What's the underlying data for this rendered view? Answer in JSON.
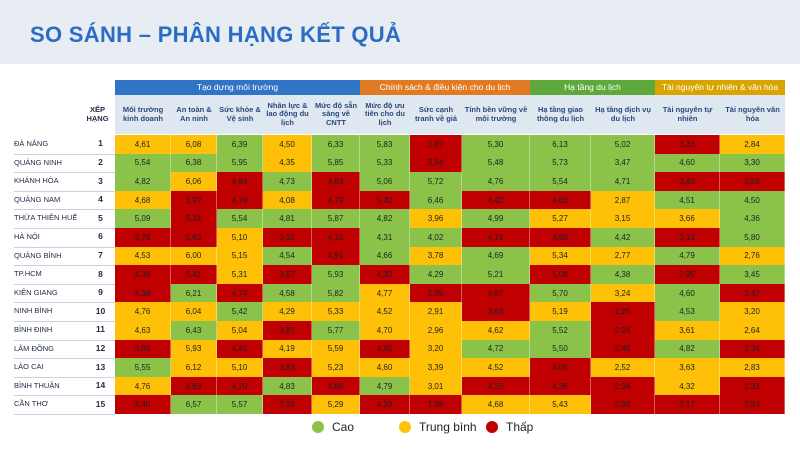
{
  "title": "SO SÁNH – PHÂN HẠNG KẾT QUẢ",
  "colors": {
    "Cao": "#8bc34a",
    "Trung bình": "#ffc107",
    "Thấp": "#c00000"
  },
  "groups": [
    {
      "label": "Tạo dựng môi trường",
      "color": "#2f74c6",
      "span": 5
    },
    {
      "label": "Chính sách & điều kiện cho du lịch",
      "color": "#e07b24",
      "span": 3
    },
    {
      "label": "Hạ tầng du lịch",
      "color": "#5fa83c",
      "span": 2
    },
    {
      "label": "Tài nguyên tự nhiên & văn hóa",
      "color": "#d9a400",
      "span": 2
    }
  ],
  "rank_header": "XẾP HẠNG",
  "columns": [
    "Môi trường kinh doanh",
    "An toàn & An ninh",
    "Sức khỏe & Vệ sinh",
    "Nhân lực & lao động du lịch",
    "Mức độ sẵn sàng về CNTT",
    "Mức độ ưu tiên cho du lịch",
    "Sức cạnh tranh về giá",
    "Tính bền vững về môi trường",
    "Hạ tầng giao thông du lịch",
    "Hạ tầng dịch vụ du lịch",
    "Tài nguyên tự nhiên",
    "Tài nguyên văn hóa"
  ],
  "rows": [
    {
      "name": "ĐÀ NẴNG",
      "rank": "1",
      "cells": [
        [
          "4,61",
          "Y"
        ],
        [
          "6,08",
          "Y"
        ],
        [
          "6,39",
          "G"
        ],
        [
          "4,50",
          "Y"
        ],
        [
          "6,33",
          "G"
        ],
        [
          "5,83",
          "G"
        ],
        [
          "2,87",
          "R"
        ],
        [
          "5,30",
          "G"
        ],
        [
          "6,13",
          "G"
        ],
        [
          "5,02",
          "G"
        ],
        [
          "3,33",
          "R"
        ],
        [
          "2,84",
          "Y"
        ]
      ]
    },
    {
      "name": "QUẢNG NINH",
      "rank": "2",
      "cells": [
        [
          "5,54",
          "G"
        ],
        [
          "6,38",
          "G"
        ],
        [
          "5,95",
          "G"
        ],
        [
          "4,35",
          "Y"
        ],
        [
          "5,85",
          "G"
        ],
        [
          "5,33",
          "G"
        ],
        [
          "2,84",
          "R"
        ],
        [
          "5,48",
          "G"
        ],
        [
          "5,73",
          "G"
        ],
        [
          "3,47",
          "G"
        ],
        [
          "4,60",
          "G"
        ],
        [
          "3,30",
          "G"
        ]
      ]
    },
    {
      "name": "KHÁNH HÒA",
      "rank": "3",
      "cells": [
        [
          "4,82",
          "G"
        ],
        [
          "6,06",
          "Y"
        ],
        [
          "4,94",
          "R"
        ],
        [
          "4,73",
          "G"
        ],
        [
          "4,83",
          "R"
        ],
        [
          "5,06",
          "G"
        ],
        [
          "5,72",
          "G"
        ],
        [
          "4,76",
          "G"
        ],
        [
          "5,54",
          "G"
        ],
        [
          "4,71",
          "G"
        ],
        [
          "3,40",
          "R"
        ],
        [
          "2,56",
          "R"
        ]
      ]
    },
    {
      "name": "QUẢNG NAM",
      "rank": "4",
      "cells": [
        [
          "4,68",
          "Y"
        ],
        [
          "5,92",
          "R"
        ],
        [
          "4,76",
          "R"
        ],
        [
          "4,08",
          "Y"
        ],
        [
          "4,79",
          "R"
        ],
        [
          "5,42",
          "R"
        ],
        [
          "6,46",
          "G"
        ],
        [
          "4,42",
          "R"
        ],
        [
          "4,83",
          "R"
        ],
        [
          "2,87",
          "Y"
        ],
        [
          "4,51",
          "G"
        ],
        [
          "4,50",
          "G"
        ]
      ]
    },
    {
      "name": "THỪA THIÊN HUẾ",
      "rank": "5",
      "cells": [
        [
          "5,09",
          "G"
        ],
        [
          "5,14",
          "R"
        ],
        [
          "5,54",
          "G"
        ],
        [
          "4,81",
          "G"
        ],
        [
          "5,87",
          "G"
        ],
        [
          "4,82",
          "G"
        ],
        [
          "3,96",
          "Y"
        ],
        [
          "4,99",
          "G"
        ],
        [
          "5,27",
          "Y"
        ],
        [
          "3,15",
          "Y"
        ],
        [
          "3,66",
          "Y"
        ],
        [
          "4,36",
          "G"
        ]
      ]
    },
    {
      "name": "HÀ NỘI",
      "rank": "6",
      "cells": [
        [
          "3,78",
          "R"
        ],
        [
          "5,63",
          "R"
        ],
        [
          "5,10",
          "Y"
        ],
        [
          "3,32",
          "R"
        ],
        [
          "4,15",
          "R"
        ],
        [
          "4,31",
          "G"
        ],
        [
          "4,02",
          "G"
        ],
        [
          "4,19",
          "R"
        ],
        [
          "4,89",
          "R"
        ],
        [
          "4,42",
          "G"
        ],
        [
          "3,13",
          "R"
        ],
        [
          "5,80",
          "G"
        ]
      ]
    },
    {
      "name": "QUẢNG BÌNH",
      "rank": "7",
      "cells": [
        [
          "4,53",
          "Y"
        ],
        [
          "6,00",
          "Y"
        ],
        [
          "5,15",
          "Y"
        ],
        [
          "4,54",
          "G"
        ],
        [
          "4,91",
          "R"
        ],
        [
          "4,66",
          "G"
        ],
        [
          "3,78",
          "Y"
        ],
        [
          "4,69",
          "G"
        ],
        [
          "5,34",
          "Y"
        ],
        [
          "2,77",
          "Y"
        ],
        [
          "4,79",
          "G"
        ],
        [
          "2,76",
          "Y"
        ]
      ]
    },
    {
      "name": "TP.HCM",
      "rank": "8",
      "cells": [
        [
          "4,39",
          "R"
        ],
        [
          "5,41",
          "R"
        ],
        [
          "5,31",
          "Y"
        ],
        [
          "3,67",
          "R"
        ],
        [
          "5,93",
          "G"
        ],
        [
          "4,30",
          "R"
        ],
        [
          "4,29",
          "G"
        ],
        [
          "5,21",
          "G"
        ],
        [
          "5,08",
          "R"
        ],
        [
          "4,38",
          "G"
        ],
        [
          "2,95",
          "R"
        ],
        [
          "3,45",
          "G"
        ]
      ]
    },
    {
      "name": "KIÊN GIANG",
      "rank": "9",
      "cells": [
        [
          "4,38",
          "R"
        ],
        [
          "6,21",
          "G"
        ],
        [
          "4,74",
          "R"
        ],
        [
          "4,58",
          "G"
        ],
        [
          "5,82",
          "G"
        ],
        [
          "4,77",
          "Y"
        ],
        [
          "2,85",
          "R"
        ],
        [
          "4,07",
          "R"
        ],
        [
          "5,70",
          "G"
        ],
        [
          "3,24",
          "Y"
        ],
        [
          "4,60",
          "G"
        ],
        [
          "2,47",
          "R"
        ]
      ]
    },
    {
      "name": "NINH BÌNH",
      "rank": "10",
      "cells": [
        [
          "4,76",
          "Y"
        ],
        [
          "6,04",
          "Y"
        ],
        [
          "5,42",
          "G"
        ],
        [
          "4,29",
          "Y"
        ],
        [
          "5,33",
          "Y"
        ],
        [
          "4,52",
          "Y"
        ],
        [
          "2,91",
          "Y"
        ],
        [
          "3,68",
          "R"
        ],
        [
          "5,19",
          "Y"
        ],
        [
          "2,25",
          "R"
        ],
        [
          "4,53",
          "G"
        ],
        [
          "3,20",
          "Y"
        ]
      ]
    },
    {
      "name": "BÌNH ĐỊNH",
      "rank": "11",
      "cells": [
        [
          "4,63",
          "Y"
        ],
        [
          "6,43",
          "G"
        ],
        [
          "5,04",
          "Y"
        ],
        [
          "3,87",
          "R"
        ],
        [
          "5,77",
          "G"
        ],
        [
          "4,70",
          "Y"
        ],
        [
          "2,96",
          "Y"
        ],
        [
          "4,62",
          "Y"
        ],
        [
          "5,52",
          "G"
        ],
        [
          "2,24",
          "R"
        ],
        [
          "3,61",
          "Y"
        ],
        [
          "2,64",
          "Y"
        ]
      ]
    },
    {
      "name": "LÂM ĐỒNG",
      "rank": "12",
      "cells": [
        [
          "3,65",
          "R"
        ],
        [
          "5,93",
          "Y"
        ],
        [
          "4,45",
          "R"
        ],
        [
          "4,19",
          "Y"
        ],
        [
          "5,59",
          "Y"
        ],
        [
          "4,45",
          "R"
        ],
        [
          "3,20",
          "Y"
        ],
        [
          "4,72",
          "G"
        ],
        [
          "5,50",
          "G"
        ],
        [
          "2,48",
          "R"
        ],
        [
          "4,82",
          "G"
        ],
        [
          "2,34",
          "R"
        ]
      ]
    },
    {
      "name": "LÀO CAI",
      "rank": "13",
      "cells": [
        [
          "5,55",
          "G"
        ],
        [
          "6,12",
          "Y"
        ],
        [
          "5,10",
          "Y"
        ],
        [
          "3,93",
          "R"
        ],
        [
          "5,23",
          "Y"
        ],
        [
          "4,60",
          "Y"
        ],
        [
          "3,39",
          "Y"
        ],
        [
          "4,52",
          "Y"
        ],
        [
          "4,05",
          "R"
        ],
        [
          "2,52",
          "Y"
        ],
        [
          "3,63",
          "Y"
        ],
        [
          "2,83",
          "Y"
        ]
      ]
    },
    {
      "name": "BÌNH THUẬN",
      "rank": "14",
      "cells": [
        [
          "4,76",
          "Y"
        ],
        [
          "4,63",
          "R"
        ],
        [
          "4,70",
          "R"
        ],
        [
          "4,83",
          "G"
        ],
        [
          "4,86",
          "R"
        ],
        [
          "4,79",
          "G"
        ],
        [
          "3,01",
          "Y"
        ],
        [
          "4,25",
          "R"
        ],
        [
          "4,35",
          "R"
        ],
        [
          "2,34",
          "R"
        ],
        [
          "4,32",
          "Y"
        ],
        [
          "2,31",
          "R"
        ]
      ]
    },
    {
      "name": "CẦN THƠ",
      "rank": "15",
      "cells": [
        [
          "4,40",
          "R"
        ],
        [
          "6,57",
          "G"
        ],
        [
          "5,57",
          "G"
        ],
        [
          "3,50",
          "R"
        ],
        [
          "5,29",
          "Y"
        ],
        [
          "4,39",
          "R"
        ],
        [
          "1,98",
          "R"
        ],
        [
          "4,68",
          "Y"
        ],
        [
          "5,43",
          "Y"
        ],
        [
          "2,06",
          "R"
        ],
        [
          "3,17",
          "R"
        ],
        [
          "2,53",
          "R"
        ]
      ]
    }
  ],
  "legend": [
    {
      "label": "Cao",
      "color": "#8bc34a"
    },
    {
      "label": "Trung bình",
      "color": "#ffc107"
    },
    {
      "label": "Thấp",
      "color": "#c00000"
    }
  ]
}
